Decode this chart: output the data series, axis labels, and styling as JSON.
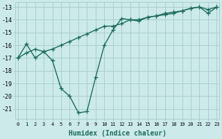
{
  "xlabel": "Humidex (Indice chaleur)",
  "bg_color": "#cceaea",
  "grid_color": "#aacece",
  "line_color": "#1a6b5a",
  "x_straight": [
    0,
    1,
    2,
    3,
    4,
    5,
    6,
    7,
    8,
    9,
    10,
    11,
    12,
    13,
    14,
    15,
    16,
    17,
    18,
    19,
    20,
    21,
    22,
    23
  ],
  "y_straight": [
    -17.0,
    -16.6,
    -16.3,
    -16.5,
    -16.3,
    -16.0,
    -15.7,
    -15.4,
    -15.1,
    -14.8,
    -14.5,
    -14.5,
    -14.3,
    -14.0,
    -14.0,
    -13.8,
    -13.7,
    -13.5,
    -13.4,
    -13.3,
    -13.1,
    -13.0,
    -13.2,
    -13.0
  ],
  "x_zigzag": [
    0,
    1,
    2,
    3,
    4,
    5,
    6,
    7,
    8,
    9,
    10,
    11,
    12,
    13,
    14,
    15,
    16,
    17,
    18,
    19,
    20,
    21,
    22,
    23
  ],
  "y_zigzag": [
    -17.0,
    -15.9,
    -17.0,
    -16.5,
    -17.2,
    -19.4,
    -20.0,
    -21.3,
    -21.2,
    -18.5,
    -16.0,
    -14.8,
    -13.9,
    -14.0,
    -14.1,
    -13.8,
    -13.7,
    -13.6,
    -13.5,
    -13.3,
    -13.1,
    -13.0,
    -13.5,
    -13.0
  ],
  "xlim": [
    -0.3,
    23.3
  ],
  "ylim": [
    -21.8,
    -12.6
  ],
  "yticks": [
    -21,
    -20,
    -19,
    -18,
    -17,
    -16,
    -15,
    -14,
    -13
  ],
  "xticks": [
    0,
    1,
    2,
    3,
    4,
    5,
    6,
    7,
    8,
    9,
    10,
    11,
    12,
    13,
    14,
    15,
    16,
    17,
    18,
    19,
    20,
    21,
    22,
    23
  ],
  "marker": "+",
  "markersize": 4,
  "linewidth": 1.0
}
